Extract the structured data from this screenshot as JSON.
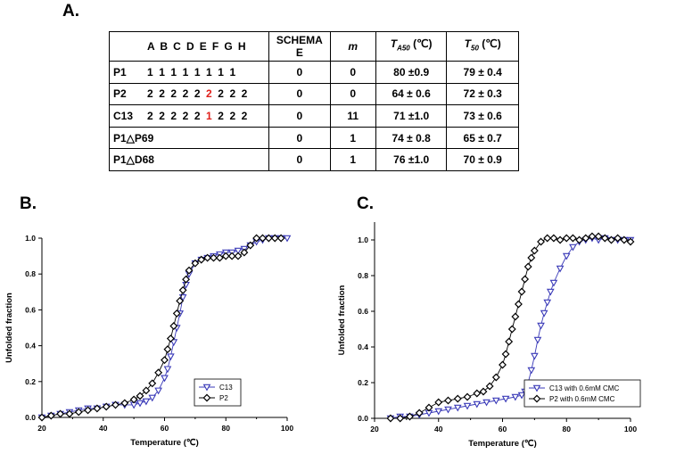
{
  "panels": {
    "a": "A.",
    "b": "B.",
    "c": "C."
  },
  "table": {
    "header": {
      "seq": "A B C D E F G H",
      "schema_line1": "SCHEMA",
      "schema_line2": "E",
      "m": "m",
      "ta50_T": "T",
      "ta50_sub": "A50",
      "ta50_unit": " (℃)",
      "t50_T": "T",
      "t50_sub": "50",
      "t50_unit": " (℃)"
    },
    "rows": [
      {
        "name": "P1",
        "seq_pre": "1 1 1 1 1 1 1 1",
        "seq_hl": "",
        "seq_post": "",
        "schema": "0",
        "m": "0",
        "ta50": "80 ±0.9",
        "t50": "79 ± 0.4"
      },
      {
        "name": "P2",
        "seq_pre": "2 2 2 2 2 ",
        "seq_hl": "2",
        "seq_post": " 2 2 2",
        "schema": "0",
        "m": "0",
        "ta50": "64 ± 0.6",
        "t50": "72 ± 0.3"
      },
      {
        "name": "C13",
        "seq_pre": "2 2 2 2 2 ",
        "seq_hl": "1",
        "seq_post": " 2 2 2",
        "schema": "0",
        "m": "11",
        "ta50": "71 ±1.0",
        "t50": "73 ± 0.6"
      },
      {
        "name": "P1△P69",
        "seq_pre": "",
        "seq_hl": "",
        "seq_post": "",
        "schema": "0",
        "m": "1",
        "ta50": "74 ± 0.8",
        "t50": "65 ± 0.7"
      },
      {
        "name": "P1△D68",
        "seq_pre": "",
        "seq_hl": "",
        "seq_post": "",
        "schema": "0",
        "m": "1",
        "ta50": "76 ±1.0",
        "t50": "70 ± 0.9"
      }
    ]
  },
  "chart_data": [
    {
      "type": "scatter",
      "panel": "B.",
      "xlabel": "Temperature (℃)",
      "ylabel": "Unfolded fraction",
      "xlim": [
        20,
        100
      ],
      "ylim": [
        0,
        1.0
      ],
      "xticks": [
        "20",
        "40",
        "60",
        "80",
        "100"
      ],
      "yticks": [
        "0.0",
        "0.2",
        "0.4",
        "0.6",
        "0.8",
        "1.0"
      ],
      "legend_position": "bottom-right",
      "series": [
        {
          "name": "C13",
          "marker": "triangle-down",
          "color": "#3a3ab8",
          "x": [
            20,
            23,
            26,
            29,
            32,
            35,
            38,
            41,
            44,
            47,
            50,
            52,
            54,
            56,
            58,
            60,
            61,
            62,
            63,
            64,
            65,
            66,
            67,
            68,
            70,
            72,
            74,
            76,
            78,
            80,
            82,
            84,
            86,
            88,
            90,
            92,
            94,
            96,
            98,
            100
          ],
          "y": [
            0.0,
            0.01,
            0.02,
            0.03,
            0.04,
            0.05,
            0.05,
            0.06,
            0.07,
            0.07,
            0.07,
            0.08,
            0.09,
            0.11,
            0.15,
            0.22,
            0.27,
            0.34,
            0.42,
            0.5,
            0.58,
            0.67,
            0.74,
            0.8,
            0.86,
            0.88,
            0.89,
            0.9,
            0.91,
            0.92,
            0.92,
            0.93,
            0.94,
            0.96,
            0.98,
            0.99,
            1.0,
            1.0,
            1.0,
            1.0
          ]
        },
        {
          "name": "P2",
          "marker": "diamond",
          "color": "#000000",
          "x": [
            20,
            23,
            26,
            29,
            32,
            35,
            38,
            41,
            44,
            47,
            50,
            52,
            54,
            56,
            58,
            60,
            61,
            62,
            63,
            64,
            65,
            66,
            67,
            68,
            70,
            72,
            74,
            76,
            78,
            80,
            82,
            84,
            86,
            88,
            90,
            92,
            94,
            96,
            98
          ],
          "y": [
            0.0,
            0.01,
            0.02,
            0.02,
            0.03,
            0.04,
            0.05,
            0.06,
            0.07,
            0.08,
            0.1,
            0.12,
            0.15,
            0.19,
            0.25,
            0.32,
            0.38,
            0.44,
            0.51,
            0.58,
            0.65,
            0.71,
            0.77,
            0.82,
            0.86,
            0.88,
            0.89,
            0.89,
            0.89,
            0.9,
            0.9,
            0.9,
            0.92,
            0.96,
            1.0,
            1.0,
            1.0,
            1.0,
            1.0
          ]
        }
      ]
    },
    {
      "type": "scatter",
      "panel": "C.",
      "xlabel": "Temperature (℃)",
      "ylabel": "Unfolded fraction",
      "xlim": [
        20,
        100
      ],
      "ylim": [
        0,
        1.1
      ],
      "xticks": [
        "20",
        "40",
        "60",
        "80",
        "100"
      ],
      "yticks": [
        "0.0",
        "0.2",
        "0.4",
        "0.6",
        "0.8",
        "1.0"
      ],
      "legend_position": "bottom-right",
      "series": [
        {
          "name": "C13 with 0.6mM CMC",
          "marker": "triangle-down",
          "color": "#3a3ab8",
          "x": [
            25,
            28,
            31,
            34,
            37,
            40,
            43,
            46,
            49,
            52,
            55,
            58,
            61,
            64,
            66,
            67,
            68,
            69,
            70,
            71,
            72,
            73,
            74,
            75,
            76,
            78,
            80,
            82,
            84,
            86,
            88,
            90,
            92,
            94,
            96,
            98,
            100
          ],
          "y": [
            0.0,
            0.01,
            0.01,
            0.02,
            0.03,
            0.04,
            0.05,
            0.06,
            0.07,
            0.08,
            0.09,
            0.1,
            0.11,
            0.12,
            0.13,
            0.15,
            0.2,
            0.27,
            0.35,
            0.44,
            0.52,
            0.59,
            0.65,
            0.71,
            0.76,
            0.84,
            0.91,
            0.96,
            0.99,
            1.0,
            1.01,
            1.0,
            1.01,
            1.0,
            1.0,
            1.0,
            1.0
          ]
        },
        {
          "name": "P2 with 0.6mM CMC",
          "marker": "diamond",
          "color": "#000000",
          "x": [
            25,
            28,
            31,
            34,
            37,
            40,
            43,
            46,
            49,
            52,
            54,
            56,
            58,
            60,
            61,
            62,
            63,
            64,
            65,
            66,
            67,
            68,
            69,
            70,
            72,
            74,
            76,
            78,
            80,
            82,
            84,
            86,
            88,
            90,
            92,
            94,
            96,
            98,
            100
          ],
          "y": [
            0.0,
            0.0,
            0.01,
            0.03,
            0.06,
            0.09,
            0.1,
            0.11,
            0.12,
            0.14,
            0.15,
            0.18,
            0.23,
            0.3,
            0.36,
            0.43,
            0.5,
            0.57,
            0.64,
            0.71,
            0.78,
            0.85,
            0.9,
            0.94,
            0.99,
            1.01,
            1.01,
            1.0,
            1.01,
            1.01,
            1.0,
            1.01,
            1.02,
            1.02,
            1.01,
            1.0,
            1.01,
            1.0,
            0.99
          ]
        }
      ]
    }
  ]
}
